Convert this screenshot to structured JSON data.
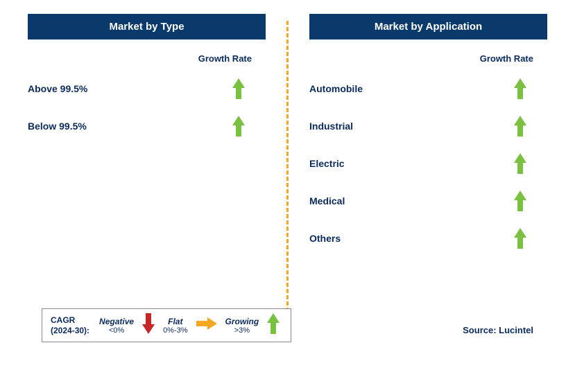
{
  "colors": {
    "header_bg": "#0a3a6b",
    "header_text": "#ffffff",
    "text_dark": "#0a2a5c",
    "divider": "#f5a623",
    "arrow_growing": "#7ac142",
    "arrow_flat": "#f5a623",
    "arrow_negative": "#c62828",
    "legend_border": "#888888",
    "background": "#ffffff"
  },
  "fonts": {
    "header_size": 15,
    "label_size": 14,
    "growth_label_size": 13,
    "legend_size": 12
  },
  "left_panel": {
    "title": "Market by Type",
    "growth_label": "Growth Rate",
    "items": [
      {
        "label": "Above 99.5%",
        "direction": "up",
        "color_key": "arrow_growing"
      },
      {
        "label": "Below 99.5%",
        "direction": "up",
        "color_key": "arrow_growing"
      }
    ]
  },
  "right_panel": {
    "title": "Market by Application",
    "growth_label": "Growth Rate",
    "items": [
      {
        "label": "Automobile",
        "direction": "up",
        "color_key": "arrow_growing"
      },
      {
        "label": "Industrial",
        "direction": "up",
        "color_key": "arrow_growing"
      },
      {
        "label": "Electric",
        "direction": "up",
        "color_key": "arrow_growing"
      },
      {
        "label": "Medical",
        "direction": "up",
        "color_key": "arrow_growing"
      },
      {
        "label": "Others",
        "direction": "up",
        "color_key": "arrow_growing"
      }
    ]
  },
  "legend": {
    "title_line1": "CAGR",
    "title_line2": "(2024-30):",
    "segments": [
      {
        "category": "Negative",
        "range": "<0%",
        "arrow_dir": "down",
        "color_key": "arrow_negative"
      },
      {
        "category": "Flat",
        "range": "0%-3%",
        "arrow_dir": "right",
        "color_key": "arrow_flat"
      },
      {
        "category": "Growing",
        "range": ">3%",
        "arrow_dir": "up",
        "color_key": "arrow_growing"
      }
    ]
  },
  "source": "Source: Lucintel"
}
